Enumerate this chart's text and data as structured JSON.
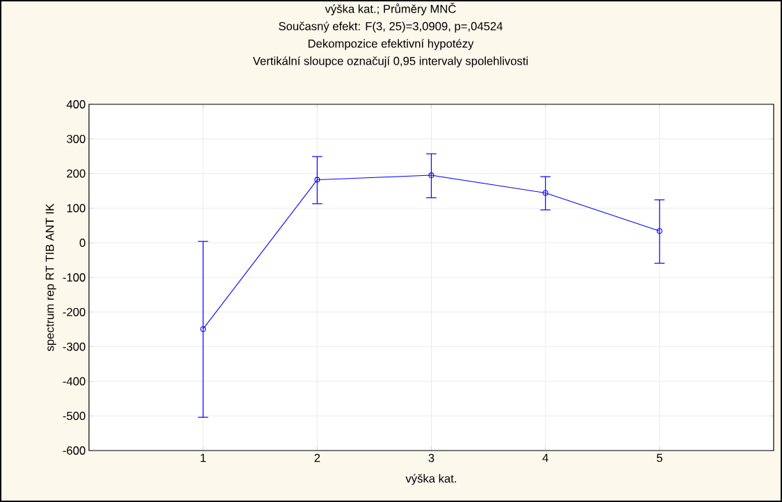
{
  "chart_data": {
    "type": "line",
    "title": "výška kat.; Průměry MNČ",
    "subtitle": "Současný efekt: F(3, 25)=3,0909, p=,04524",
    "annotations": [
      "Dekompozice efektivní hypotézy",
      "Vertikální sloupce označují 0,95 intervaly spolehlivosti"
    ],
    "xlabel": "výška kat.",
    "ylabel": "spectrum rep RT TIB ANT IK",
    "x": [
      1,
      2,
      3,
      4,
      5
    ],
    "series": [
      {
        "color": "#0000ff",
        "values": [
          -249,
          182,
          195,
          144,
          34
        ],
        "errors": [
          [
            -504,
            4
          ],
          [
            113,
            249
          ],
          [
            130,
            257
          ],
          [
            95,
            191
          ],
          [
            -59,
            124
          ]
        ]
      }
    ],
    "xlim": [
      0,
      6
    ],
    "xticks": [
      1,
      2,
      3,
      4,
      5
    ],
    "ylim": [
      -600,
      400
    ],
    "yticks": [
      -600,
      -500,
      -400,
      -300,
      -200,
      -100,
      0,
      100,
      200,
      300,
      400
    ],
    "grid": true,
    "marker": "circle",
    "line_style": "solid"
  }
}
